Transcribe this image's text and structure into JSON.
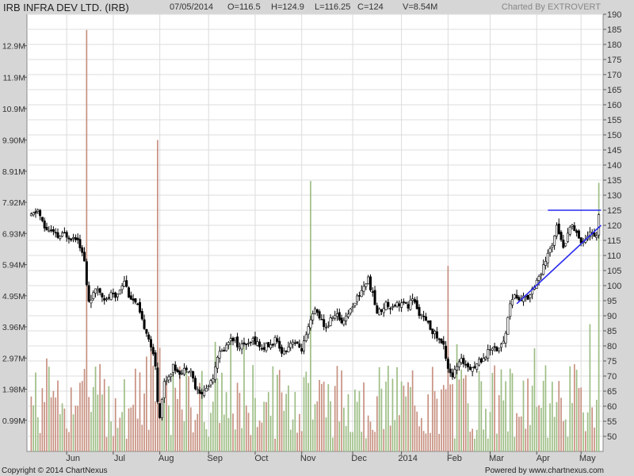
{
  "header": {
    "title": "IRB INFRA DEV LTD. (IRB)",
    "date": "07/05/2014",
    "open": "O=116.5",
    "high": "H=124.9",
    "low": "L=116.25",
    "close": "C=124",
    "volume": "V=8.54M",
    "charted_by": "Charted By EXTROVERT"
  },
  "footer": {
    "copyright": "Copyright © 2014 ChartNexus",
    "powered": "Powered by www.chartnexus.com"
  },
  "colors": {
    "background": "#d6d6d6",
    "plot": "#ffffff",
    "grid": "#dcdcdc",
    "candle": "#000000",
    "vol_up": "#9dbd84",
    "vol_down": "#c79080",
    "trendline": "#2a2af0"
  },
  "chart_data": {
    "type": "candlestick",
    "price_axis": {
      "ticks": [
        "190",
        "185",
        "180",
        "175",
        "170",
        "165",
        "160",
        "155",
        "150",
        "145",
        "140",
        "135",
        "130",
        "125",
        "120",
        "115",
        "110",
        "105",
        "100",
        "95",
        "90",
        "85",
        "80",
        "75",
        "70",
        "65",
        "60",
        "55",
        "50"
      ],
      "range": [
        45,
        190
      ]
    },
    "volume_axis": {
      "ticks": [
        "12.9M",
        "11.9M",
        "10.9M",
        "9.90M",
        "8.91M",
        "7.92M",
        "6.93M",
        "5.94M",
        "4.95M",
        "3.96M",
        "2.97M",
        "1.98M",
        "0.99M"
      ],
      "range_m": [
        0,
        13.9
      ]
    },
    "x_axis": {
      "labels": [
        "Jun",
        "Jul",
        "Aug",
        "Sep",
        "Oct",
        "Nov",
        "Dec",
        "2014",
        "Feb",
        "Mar",
        "Apr",
        "May"
      ],
      "label_positions_days": [
        21,
        42,
        63,
        85,
        106,
        127,
        150,
        172,
        193,
        212,
        233,
        253
      ]
    },
    "close_path": [
      [
        0,
        123
      ],
      [
        3,
        125
      ],
      [
        6,
        119
      ],
      [
        9,
        118
      ],
      [
        12,
        116
      ],
      [
        15,
        117
      ],
      [
        18,
        116
      ],
      [
        21,
        116
      ],
      [
        24,
        108
      ],
      [
        25,
        100
      ],
      [
        26,
        95
      ],
      [
        28,
        97
      ],
      [
        30,
        99
      ],
      [
        32,
        97
      ],
      [
        34,
        95
      ],
      [
        36,
        97
      ],
      [
        38,
        96
      ],
      [
        40,
        99
      ],
      [
        42,
        102
      ],
      [
        44,
        97
      ],
      [
        46,
        95
      ],
      [
        48,
        93
      ],
      [
        50,
        88
      ],
      [
        52,
        85
      ],
      [
        54,
        80
      ],
      [
        56,
        73
      ],
      [
        57,
        62
      ],
      [
        58,
        57
      ],
      [
        60,
        68
      ],
      [
        62,
        70
      ],
      [
        64,
        73
      ],
      [
        66,
        72
      ],
      [
        68,
        71
      ],
      [
        70,
        73
      ],
      [
        72,
        72
      ],
      [
        74,
        66
      ],
      [
        76,
        64
      ],
      [
        78,
        65
      ],
      [
        80,
        67
      ],
      [
        82,
        70
      ],
      [
        84,
        77
      ],
      [
        86,
        78
      ],
      [
        88,
        80
      ],
      [
        90,
        83
      ],
      [
        92,
        82
      ],
      [
        94,
        79
      ],
      [
        96,
        81
      ],
      [
        98,
        80
      ],
      [
        100,
        82
      ],
      [
        102,
        81
      ],
      [
        104,
        79
      ],
      [
        106,
        80
      ],
      [
        108,
        80
      ],
      [
        110,
        82
      ],
      [
        112,
        79
      ],
      [
        114,
        78
      ],
      [
        116,
        80
      ],
      [
        118,
        82
      ],
      [
        120,
        80
      ],
      [
        122,
        79
      ],
      [
        124,
        83
      ],
      [
        126,
        88
      ],
      [
        128,
        92
      ],
      [
        130,
        90
      ],
      [
        132,
        86
      ],
      [
        134,
        87
      ],
      [
        136,
        90
      ],
      [
        138,
        90
      ],
      [
        140,
        88
      ],
      [
        142,
        90
      ],
      [
        144,
        92
      ],
      [
        146,
        95
      ],
      [
        148,
        97
      ],
      [
        150,
        100
      ],
      [
        152,
        102
      ],
      [
        154,
        97
      ],
      [
        156,
        91
      ],
      [
        158,
        92
      ],
      [
        160,
        94
      ],
      [
        162,
        93
      ],
      [
        164,
        94
      ],
      [
        166,
        94
      ],
      [
        168,
        94
      ],
      [
        170,
        93
      ],
      [
        172,
        96
      ],
      [
        174,
        92
      ],
      [
        176,
        90
      ],
      [
        178,
        88
      ],
      [
        180,
        86
      ],
      [
        182,
        84
      ],
      [
        184,
        82
      ],
      [
        186,
        80
      ],
      [
        188,
        73
      ],
      [
        190,
        70
      ],
      [
        192,
        73
      ],
      [
        194,
        75
      ],
      [
        196,
        74
      ],
      [
        198,
        73
      ],
      [
        200,
        73
      ],
      [
        202,
        75
      ],
      [
        204,
        76
      ],
      [
        206,
        78
      ],
      [
        208,
        80
      ],
      [
        210,
        79
      ],
      [
        212,
        80
      ],
      [
        214,
        84
      ],
      [
        215,
        90
      ],
      [
        216,
        94
      ],
      [
        218,
        97
      ],
      [
        220,
        95
      ],
      [
        222,
        96
      ],
      [
        224,
        96
      ],
      [
        226,
        99
      ],
      [
        228,
        102
      ],
      [
        230,
        104
      ],
      [
        232,
        108
      ],
      [
        234,
        112
      ],
      [
        235,
        114
      ],
      [
        236,
        117
      ],
      [
        237,
        121
      ],
      [
        238,
        118
      ],
      [
        239,
        116
      ],
      [
        240,
        112
      ],
      [
        242,
        118
      ],
      [
        244,
        120
      ],
      [
        246,
        118
      ],
      [
        248,
        114
      ],
      [
        250,
        116
      ],
      [
        252,
        118
      ],
      [
        254,
        116
      ],
      [
        255,
        117
      ],
      [
        256,
        124
      ]
    ],
    "candle_days": 257,
    "volume_key_values_m": [
      {
        "day": 25,
        "v": 13.4,
        "down": true
      },
      {
        "day": 57,
        "v": 9.9,
        "down": true
      },
      {
        "day": 126,
        "v": 8.6,
        "down": false
      },
      {
        "day": 188,
        "v": 5.9,
        "down": true
      },
      {
        "day": 256,
        "v": 8.54,
        "down": false
      }
    ],
    "trendlines": [
      {
        "from": [
          233,
          125
        ],
        "to": [
          257,
          125
        ]
      },
      {
        "from": [
          219,
          94
        ],
        "to": [
          257,
          120
        ]
      }
    ]
  }
}
